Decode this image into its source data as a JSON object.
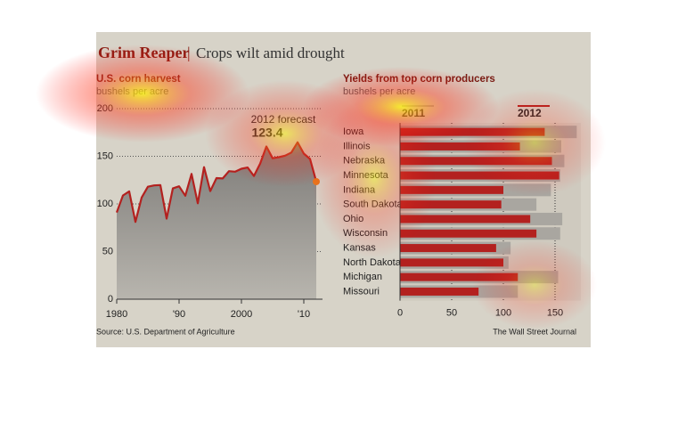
{
  "header": {
    "title": "Grim Reaper",
    "subtitle": "Crops wilt amid drought"
  },
  "chart_data": [
    {
      "type": "line",
      "title": "U.S. corn harvest",
      "y_label": "bushels per acre",
      "x": [
        1980,
        1981,
        1982,
        1983,
        1984,
        1985,
        1986,
        1987,
        1988,
        1989,
        1990,
        1991,
        1992,
        1993,
        1994,
        1995,
        1996,
        1997,
        1998,
        1999,
        2000,
        2001,
        2002,
        2003,
        2004,
        2005,
        2006,
        2007,
        2008,
        2009,
        2010,
        2011,
        2012
      ],
      "values": [
        91.0,
        108.9,
        113.2,
        81.1,
        106.7,
        118.0,
        119.4,
        119.8,
        84.6,
        116.3,
        118.5,
        108.6,
        131.5,
        100.7,
        138.6,
        113.5,
        127.1,
        126.7,
        134.4,
        133.8,
        136.9,
        138.2,
        129.3,
        142.2,
        160.3,
        147.9,
        149.1,
        150.7,
        153.9,
        164.7,
        152.8,
        147.2,
        123.4
      ],
      "color": "#b3211f",
      "annotation": "2012 forecast",
      "xlim": [
        1980,
        2013
      ],
      "xticks": [
        1980,
        {
          "value": 1990,
          "label": "'90"
        },
        2000,
        {
          "value": 2010,
          "label": "'10"
        }
      ],
      "ylim": [
        0,
        200
      ],
      "yticks": [
        0,
        50,
        100,
        150,
        200
      ],
      "grid": true
    },
    {
      "type": "hbar",
      "title": "Yields from top corn producers",
      "x_label": "bushels per acre",
      "categories": [
        "Iowa",
        "Illinois",
        "Nebraska",
        "Minnesota",
        "Indiana",
        "South Dakota",
        "Ohio",
        "Wisconsin",
        "Kansas",
        "North Dakota",
        "Michigan",
        "Missouri"
      ],
      "series": [
        {
          "name": "2011",
          "color": "#a9a6a0",
          "values": [
            171,
            156,
            159,
            155,
            146,
            132,
            157,
            155,
            107,
            105,
            153,
            114
          ]
        },
        {
          "name": "2012",
          "color": "#b3211f",
          "values": [
            140,
            116,
            147,
            154,
            100,
            98,
            126,
            132,
            93,
            100,
            114,
            76
          ]
        }
      ],
      "xlim": [
        0,
        175
      ],
      "xticks": [
        0,
        50,
        100,
        150
      ],
      "grid": true
    }
  ],
  "footer": {
    "source": "Source: U.S. Department of Agriculture",
    "credit": "The Wall Street Journal"
  }
}
